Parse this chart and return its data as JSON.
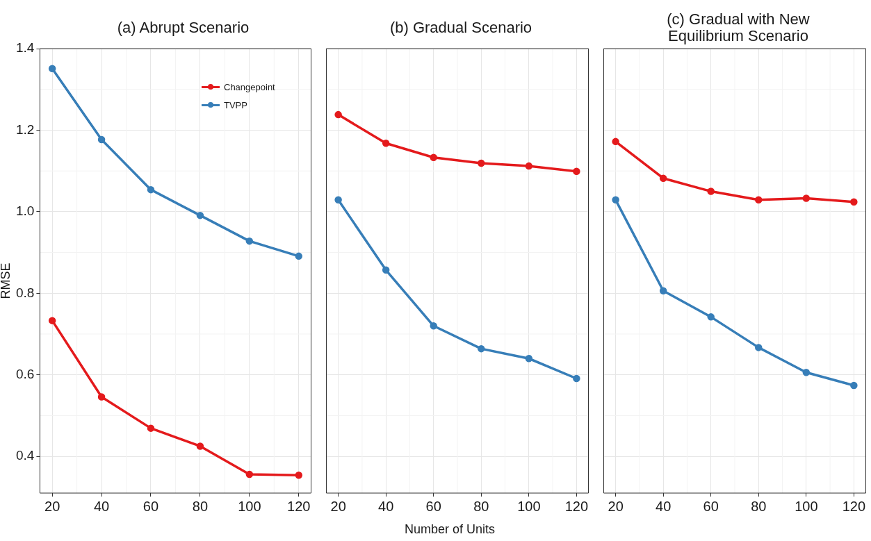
{
  "chart_data": [
    {
      "type": "line",
      "title": "(a) Abrupt Scenario",
      "ylabel": "RMSE",
      "x": [
        20,
        40,
        60,
        80,
        100,
        120
      ],
      "xlim": [
        15,
        125
      ],
      "xticks": [
        20,
        40,
        60,
        80,
        100,
        120
      ],
      "ylim": [
        0.31,
        1.4
      ],
      "yticks": [
        0.4,
        0.6,
        0.8,
        {
          "value": 1,
          "label": "1.0"
        },
        1.2,
        1.4
      ],
      "grid": true,
      "legend": "top right",
      "marker": "circle",
      "line_style": "solid",
      "series": [
        {
          "name": "Changepoint",
          "color": "#e41a1c",
          "values": [
            0.733,
            0.546,
            0.469,
            0.425,
            0.356,
            0.354
          ]
        },
        {
          "name": "TVPP",
          "color": "#377eb8",
          "values": [
            1.351,
            1.177,
            1.054,
            0.991,
            0.928,
            0.891
          ]
        }
      ]
    },
    {
      "type": "line",
      "title": "(b) Gradual Scenario",
      "xlabel": "Number of Units",
      "x": [
        20,
        40,
        60,
        80,
        100,
        120
      ],
      "xlim": [
        15,
        125
      ],
      "xticks": [
        20,
        40,
        60,
        80,
        100,
        120
      ],
      "ylim": [
        0.31,
        1.4
      ],
      "yticks": [
        0.4,
        0.6,
        0.8,
        1,
        1.2,
        1.4
      ],
      "tick_labels": "x",
      "grid": true,
      "legend": false,
      "marker": "circle",
      "line_style": "solid",
      "series": [
        {
          "color": "#e41a1c",
          "values": [
            1.238,
            1.168,
            1.133,
            1.119,
            1.112,
            1.099
          ]
        },
        {
          "color": "#377eb8",
          "values": [
            1.029,
            0.857,
            0.72,
            0.664,
            0.64,
            0.591
          ]
        }
      ]
    },
    {
      "type": "line",
      "title": "(c) Gradual with New Equilibrium Scenario",
      "x": [
        20,
        40,
        60,
        80,
        100,
        120
      ],
      "xlim": [
        15,
        125
      ],
      "xticks": [
        20,
        40,
        60,
        80,
        100,
        120
      ],
      "ylim": [
        0.31,
        1.4
      ],
      "yticks": [
        0.4,
        0.6,
        0.8,
        1,
        1.2,
        1.4
      ],
      "tick_labels": "x",
      "grid": true,
      "legend": false,
      "marker": "circle",
      "line_style": "solid",
      "series": [
        {
          "color": "#e41a1c",
          "values": [
            1.172,
            1.082,
            1.05,
            1.029,
            1.033,
            1.024
          ]
        },
        {
          "color": "#377eb8",
          "values": [
            1.029,
            0.806,
            0.742,
            0.667,
            0.606,
            0.574
          ]
        }
      ]
    }
  ]
}
